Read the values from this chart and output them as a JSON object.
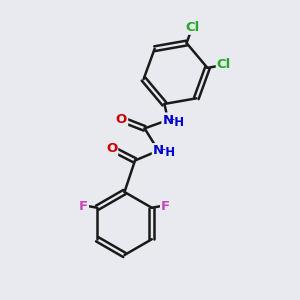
{
  "background_color": "#e8eaf0",
  "line_color": "#1a1a1a",
  "bond_width": 1.8,
  "atom_colors": {
    "C": "#1a1a1a",
    "N": "#0000cc",
    "O": "#cc0000",
    "Cl": "#22aa22",
    "F": "#cc44bb"
  },
  "font_size": 9.5,
  "fig_size": [
    3.0,
    3.0
  ],
  "dpi": 100,
  "xlim": [
    0,
    10
  ],
  "ylim": [
    0,
    10
  ]
}
